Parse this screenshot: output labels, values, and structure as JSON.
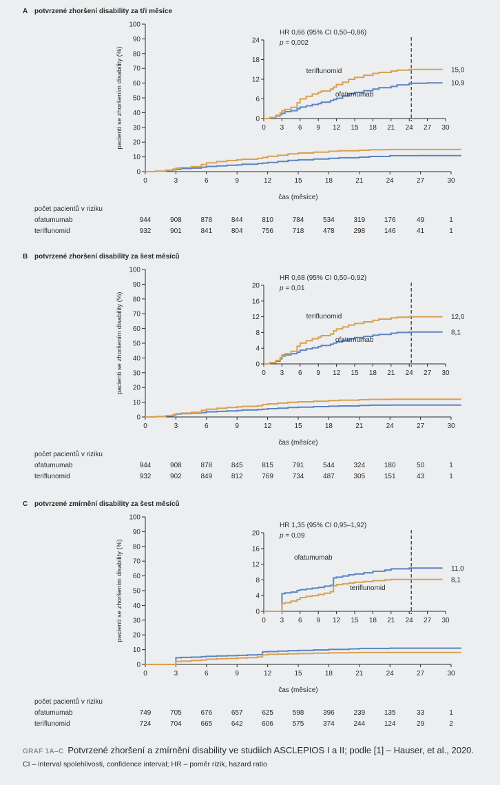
{
  "colors": {
    "ofatumumab": "#5b84c2",
    "teriflunomid": "#d9a04e",
    "axis": "#2a2a2a"
  },
  "panels": [
    {
      "letter": "A",
      "title": "potvrzené zhoršení disability za tři měsíce",
      "ylabel": "pacienti se zhoršením disability (%)",
      "xlabel": "čas (měsíce)",
      "risk_header": "počet pacientů v riziku",
      "x_ticks": [
        0,
        3,
        6,
        9,
        12,
        15,
        18,
        21,
        24,
        27,
        30
      ],
      "y_ticks": [
        0,
        10,
        20,
        30,
        40,
        50,
        60,
        70,
        80,
        90,
        100
      ],
      "inset": {
        "hr_text": "HR 0,66 (95% CI 0,50–0,86)",
        "p_label": "p",
        "p_value": " = 0,002",
        "y_ticks": [
          0,
          6,
          12,
          18,
          24
        ],
        "x_ticks": [
          0,
          3,
          6,
          9,
          12,
          15,
          18,
          21,
          24,
          27,
          30
        ],
        "end_label_teriflunomid": "15,0",
        "end_label_ofatumumab": "10,9",
        "label_teriflunomid": "teriflunomid",
        "label_ofatumumab": "ofatumumab"
      },
      "risk_rows": [
        {
          "name": "ofatumumab",
          "values": [
            "944",
            "908",
            "878",
            "844",
            "810",
            "784",
            "534",
            "319",
            "176",
            "49",
            "1"
          ]
        },
        {
          "name": "teriflunomid",
          "values": [
            "932",
            "901",
            "841",
            "804",
            "756",
            "718",
            "478",
            "298",
            "146",
            "41",
            "1"
          ]
        }
      ]
    },
    {
      "letter": "B",
      "title": "potvrzené zhoršení disability za šest měsíců",
      "ylabel": "pacienti se zhoršením disability (%)",
      "xlabel": "čas (měsíce)",
      "risk_header": "počet pacientů v riziku",
      "x_ticks": [
        0,
        3,
        6,
        9,
        12,
        15,
        18,
        21,
        24,
        27,
        30
      ],
      "y_ticks": [
        0,
        10,
        20,
        30,
        40,
        50,
        60,
        70,
        80,
        90,
        100
      ],
      "inset": {
        "hr_text": "HR 0,68 (95% CI 0,50–0,92)",
        "p_label": "p",
        "p_value": " = 0,01",
        "y_ticks": [
          0,
          4,
          8,
          12,
          16,
          20
        ],
        "x_ticks": [
          0,
          3,
          6,
          9,
          12,
          15,
          18,
          21,
          24,
          27,
          30
        ],
        "end_label_teriflunomid": "12,0",
        "end_label_ofatumumab": "8,1",
        "label_teriflunomid": "teriflunomid",
        "label_ofatumumab": "ofatumumab"
      },
      "risk_rows": [
        {
          "name": "ofatumumab",
          "values": [
            "944",
            "908",
            "878",
            "845",
            "815",
            "791",
            "544",
            "324",
            "180",
            "50",
            "1"
          ]
        },
        {
          "name": "teriflunomid",
          "values": [
            "932",
            "902",
            "849",
            "812",
            "769",
            "734",
            "487",
            "305",
            "151",
            "43",
            "1"
          ]
        }
      ]
    },
    {
      "letter": "C",
      "title": "potvrzené zmírnění disability za šest měsíců",
      "ylabel": "pacienti se zhoršením disability (%)",
      "xlabel": "čas (měsíce)",
      "risk_header": "počet pacientů v riziku",
      "x_ticks": [
        0,
        3,
        6,
        9,
        12,
        15,
        18,
        21,
        24,
        27,
        30
      ],
      "y_ticks": [
        0,
        10,
        20,
        30,
        40,
        50,
        60,
        70,
        80,
        90,
        100
      ],
      "inset": {
        "hr_text": "HR 1,35 (95% CI 0,95–1,92)",
        "p_label": "p",
        "p_value": " = 0,09",
        "y_ticks": [
          0,
          4,
          8,
          12,
          16,
          20
        ],
        "x_ticks": [
          0,
          3,
          6,
          9,
          12,
          15,
          18,
          21,
          24,
          27,
          30
        ],
        "end_label_teriflunomid": "8,1",
        "end_label_ofatumumab": "11,0",
        "label_teriflunomid": "teriflunomid",
        "label_ofatumumab": "ofatumumab"
      },
      "risk_rows": [
        {
          "name": "ofatumumab",
          "values": [
            "749",
            "705",
            "676",
            "657",
            "625",
            "598",
            "396",
            "239",
            "135",
            "33",
            "1"
          ]
        },
        {
          "name": "teriflunomid",
          "values": [
            "724",
            "704",
            "665",
            "642",
            "606",
            "575",
            "374",
            "244",
            "124",
            "29",
            "2"
          ]
        }
      ]
    }
  ],
  "chart_data": [
    {
      "type": "line",
      "title": "potvrzené zhoršení disability za tři měsíce",
      "xlabel": "čas (měsíce)",
      "ylabel": "pacienti se zhoršením disability (%)",
      "xlim": [
        0,
        30
      ],
      "ylim": [
        0,
        100
      ],
      "inset_ylim": [
        0,
        24
      ],
      "inset_marker_x": 24,
      "series": [
        {
          "name": "ofatumumab",
          "x": [
            0,
            1,
            2,
            2.7,
            3,
            3.5,
            4.5,
            5.5,
            6,
            7,
            8,
            9,
            9.5,
            11,
            11.5,
            12,
            13,
            14,
            15,
            16.5,
            18,
            19,
            21,
            22,
            24,
            27,
            31
          ],
          "y": [
            0,
            0.3,
            0.8,
            1.2,
            1.6,
            2.1,
            2.4,
            3.0,
            3.5,
            3.9,
            4.3,
            4.6,
            5.0,
            5.5,
            5.8,
            6.2,
            6.9,
            7.6,
            8.0,
            8.5,
            9.0,
            9.4,
            9.8,
            10.3,
            10.8,
            10.9,
            10.9
          ]
        },
        {
          "name": "teriflunomid",
          "x": [
            0,
            1,
            2,
            2.7,
            3,
            3.5,
            4.5,
            5.5,
            6,
            7,
            8,
            9,
            9.5,
            11,
            11.5,
            12,
            13,
            14,
            15,
            16.5,
            18,
            19,
            21,
            22,
            24,
            27,
            31
          ],
          "y": [
            0,
            0.3,
            1.0,
            1.7,
            2.4,
            2.8,
            3.4,
            4.8,
            6.0,
            6.8,
            7.5,
            8.0,
            8.4,
            9.0,
            9.6,
            10.4,
            11.1,
            12.0,
            12.6,
            13.2,
            13.8,
            14.1,
            14.5,
            14.8,
            15.0,
            15.0,
            15.0
          ]
        }
      ]
    },
    {
      "type": "line",
      "title": "potvrzené zhoršení disability za šest měsíců",
      "xlabel": "čas (měsíce)",
      "ylabel": "pacienti se zhoršením disability (%)",
      "xlim": [
        0,
        30
      ],
      "ylim": [
        0,
        100
      ],
      "inset_ylim": [
        0,
        20
      ],
      "inset_marker_x": 24,
      "series": [
        {
          "name": "ofatumumab",
          "x": [
            0,
            1,
            2,
            2.7,
            3,
            3.5,
            4.5,
            5.5,
            6,
            7,
            8,
            9,
            9.5,
            11,
            11.5,
            12,
            13,
            14,
            15,
            16.5,
            18,
            19,
            21,
            22,
            24,
            27,
            31
          ],
          "y": [
            0,
            0.3,
            0.7,
            1.3,
            2.0,
            2.3,
            2.6,
            3.0,
            3.5,
            3.8,
            4.1,
            4.4,
            4.7,
            5.0,
            5.3,
            5.6,
            6.0,
            6.4,
            6.7,
            7.0,
            7.3,
            7.5,
            7.8,
            8.0,
            8.1,
            8.1,
            8.1
          ]
        },
        {
          "name": "teriflunomid",
          "x": [
            0,
            1,
            2,
            2.7,
            3,
            3.5,
            4.5,
            5.5,
            6,
            7,
            8,
            9,
            9.5,
            11,
            11.5,
            12,
            13,
            14,
            15,
            16.5,
            18,
            19,
            21,
            22,
            24,
            27,
            31
          ],
          "y": [
            0,
            0.3,
            0.9,
            1.6,
            2.3,
            2.6,
            3.2,
            4.5,
            5.3,
            5.9,
            6.4,
            6.8,
            7.2,
            7.6,
            8.4,
            8.9,
            9.4,
            9.9,
            10.3,
            10.7,
            11.1,
            11.4,
            11.7,
            11.9,
            12.0,
            12.0,
            12.0
          ]
        }
      ]
    },
    {
      "type": "line",
      "title": "potvrzené zmírnění disability za šest měsíců",
      "xlabel": "čas (měsíce)",
      "ylabel": "pacienti se zhoršením disability (%)",
      "xlim": [
        0,
        30
      ],
      "ylim": [
        0,
        100
      ],
      "inset_ylim": [
        0,
        20
      ],
      "inset_marker_x": 24,
      "series": [
        {
          "name": "ofatumumab",
          "x": [
            0,
            1,
            2,
            2.6,
            3,
            3.5,
            4.5,
            5.5,
            6,
            7,
            8,
            9,
            10,
            11,
            11.5,
            12,
            13,
            14,
            15,
            16.5,
            18,
            20,
            21,
            24,
            27,
            31
          ],
          "y": [
            0,
            0,
            0,
            0,
            4.5,
            4.7,
            4.9,
            5.3,
            5.5,
            5.7,
            5.9,
            6.1,
            6.4,
            6.6,
            8.5,
            8.7,
            9.0,
            9.3,
            9.5,
            9.8,
            10.2,
            10.5,
            10.8,
            11.0,
            11.0,
            11.0
          ]
        },
        {
          "name": "teriflunomid",
          "x": [
            0,
            1,
            2,
            2.6,
            3,
            3.5,
            4.5,
            5.5,
            6,
            7,
            8,
            9,
            10,
            11,
            11.5,
            12,
            13,
            14,
            15,
            16.5,
            18,
            20,
            21,
            24,
            27,
            31
          ],
          "y": [
            0,
            0,
            0,
            0,
            2.0,
            2.2,
            2.6,
            3.0,
            3.5,
            3.8,
            4.0,
            4.3,
            4.6,
            5.0,
            6.5,
            6.8,
            7.0,
            7.2,
            7.4,
            7.6,
            7.8,
            8.0,
            8.1,
            8.1,
            8.1,
            8.1
          ]
        }
      ]
    }
  ],
  "caption": {
    "tag": "GRAF 1A–C",
    "text": "Potvrzené zhoršení a zmírnění disability ve studiích ASCLEPIOS I a II; podle [1] – Hauser, et al., 2020.",
    "footnote": "CI – interval spolehlivosti, confidence interval; HR – poměr rizik, hazard ratio"
  }
}
